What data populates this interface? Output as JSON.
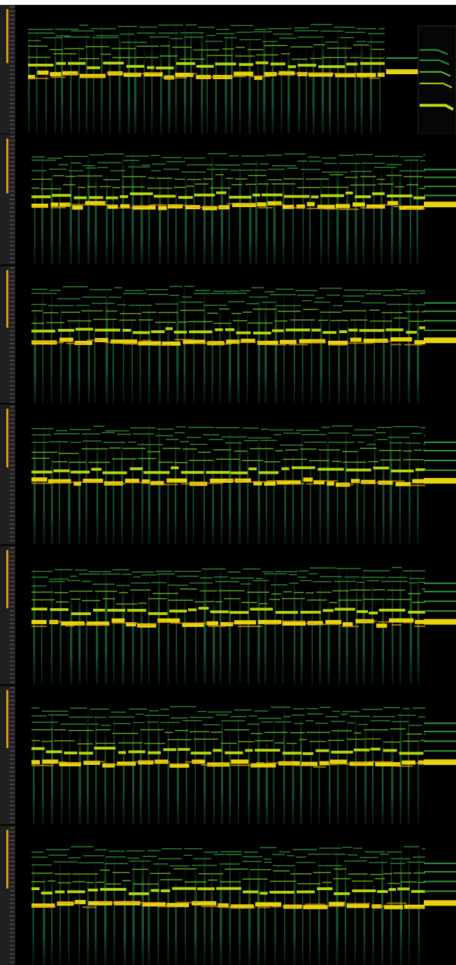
{
  "colors": {
    "background": "#000000",
    "top_edge": "#ffffff",
    "ruler": "#1f1f1f",
    "ruler_tick": "#9a9a9a",
    "level_meter": "#e09a1c",
    "colormap": [
      "#000000",
      "#0c1f22",
      "#12393b",
      "#1f6b4a",
      "#2f9a3c",
      "#6cc41f",
      "#bfe00f",
      "#e8d40c",
      "#e59b12"
    ]
  },
  "panels": [
    {
      "name": "spectrogram-panel-1",
      "has_inset": true
    },
    {
      "name": "spectrogram-panel-2",
      "has_inset": false
    },
    {
      "name": "spectrogram-panel-3",
      "has_inset": false
    },
    {
      "name": "spectrogram-panel-4",
      "has_inset": false
    },
    {
      "name": "spectrogram-panel-5",
      "has_inset": false
    },
    {
      "name": "spectrogram-panel-6",
      "has_inset": false
    },
    {
      "name": "spectrogram-panel-7",
      "has_inset": false
    }
  ]
}
